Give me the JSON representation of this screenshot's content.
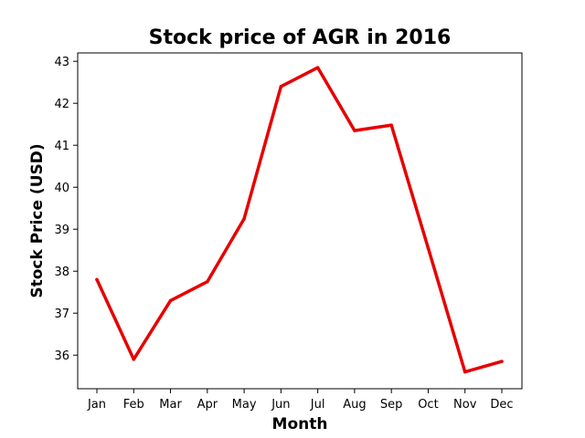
{
  "chart_data": {
    "type": "line",
    "title": "Stock price of AGR in 2016",
    "xlabel": "Month",
    "ylabel": "Stock Price (USD)",
    "categories": [
      "Jan",
      "Feb",
      "Mar",
      "Apr",
      "May",
      "Jun",
      "Jul",
      "Aug",
      "Sep",
      "Oct",
      "Nov",
      "Dec"
    ],
    "series": [
      {
        "values": [
          37.8,
          35.9,
          37.3,
          37.75,
          39.25,
          42.4,
          42.85,
          41.35,
          41.48,
          38.55,
          35.6,
          35.85
        ],
        "color": "#e60000"
      }
    ],
    "yticks": [
      36,
      37,
      38,
      39,
      40,
      41,
      42,
      43
    ],
    "ylim": [
      35.2,
      43.2
    ],
    "grid": false,
    "legend": "none"
  }
}
